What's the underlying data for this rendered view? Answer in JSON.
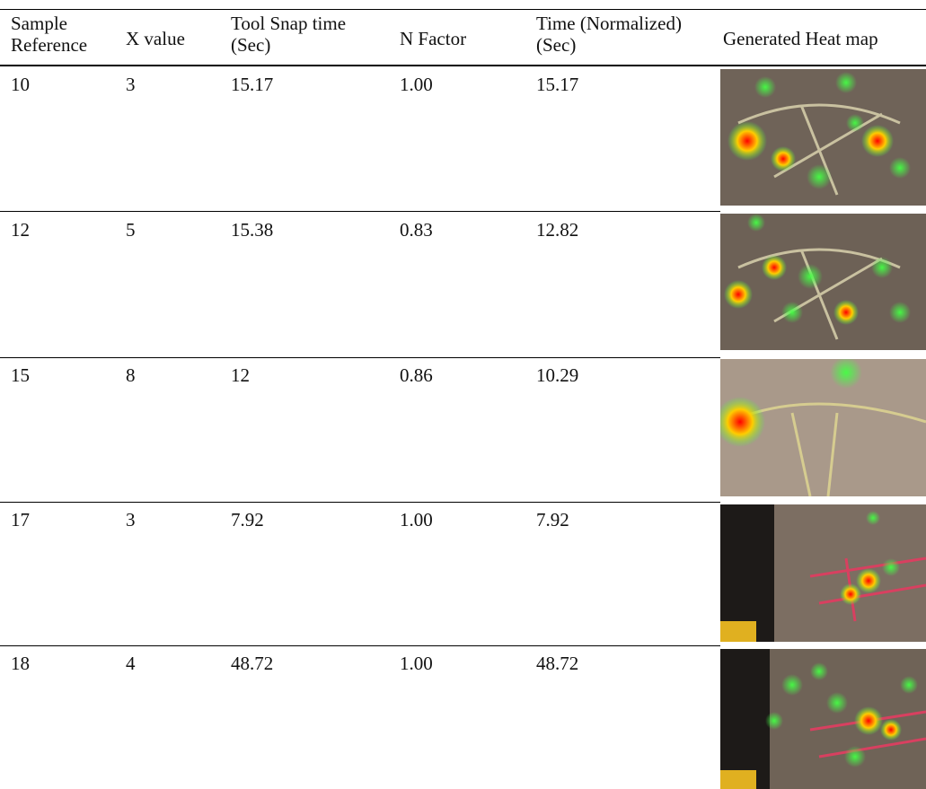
{
  "table": {
    "header": [
      [
        "Sample",
        "Reference"
      ],
      [
        "X value"
      ],
      [
        "Tool Snap time",
        "(Sec)"
      ],
      [
        "N Factor"
      ],
      [
        "Time (Normalized)",
        "(Sec)"
      ],
      [
        "Generated Heat map"
      ]
    ],
    "rows": [
      [
        "10",
        "3",
        "15.17",
        "1.00",
        "15.17"
      ],
      [
        "12",
        "5",
        "15.38",
        "0.83",
        "12.82"
      ],
      [
        "15",
        "8",
        "12",
        "0.86",
        "10.29"
      ],
      [
        "17",
        "3",
        "7.92",
        "1.00",
        "7.92"
      ],
      [
        "18",
        "4",
        "48.72",
        "1.00",
        "48.72"
      ]
    ]
  }
}
